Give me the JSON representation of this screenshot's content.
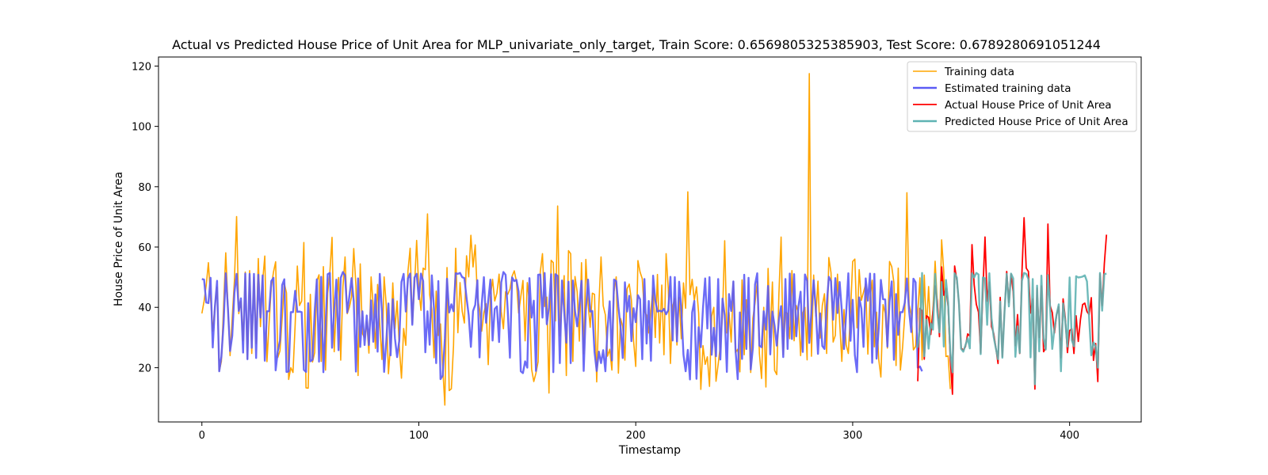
{
  "chart_data": {
    "type": "line",
    "title": "Actual vs Predicted House Price of Unit Area for MLP_univariate_only_target, Train Score: 0.6569805325385903, Test Score: 0.6789280691051244",
    "xlabel": "Timestamp",
    "ylabel": "House Price of Unit Area",
    "xlim": [
      -20,
      433
    ],
    "ylim": [
      2,
      123
    ],
    "xticks": [
      0,
      100,
      200,
      300,
      400
    ],
    "yticks": [
      20,
      40,
      60,
      80,
      100,
      120
    ],
    "grid": false,
    "legend_position": "upper right",
    "train_range": [
      0,
      330
    ],
    "test_range": [
      330,
      413
    ],
    "series": [
      {
        "name": "Training data",
        "color": "#ffa500",
        "x_start": 0,
        "values": [
          38.0,
          42.0,
          47.3,
          54.8,
          43.1,
          32.1,
          40.3,
          46.7,
          18.8,
          22.1,
          40.3,
          58.1,
          40.6,
          24.0,
          36.8,
          48.9,
          70.1,
          37.9,
          42.1,
          28.9,
          51.7,
          22.9,
          52.2,
          24.7,
          50.0,
          28.0,
          56.2,
          33.6,
          48.6,
          57.0,
          22.0,
          35.1,
          46.7,
          51.7,
          55.1,
          23.4,
          25.6,
          36.3,
          47.9,
          44.8,
          16.1,
          20.0,
          18.4,
          34.3,
          53.7,
          40.6,
          42.1,
          61.5,
          13.3,
          13.2,
          44.3,
          21.9,
          25.0,
          48.8,
          50.8,
          22.1,
          53.5,
          19.2,
          44.8,
          51.6,
          63.2,
          25.3,
          41.5,
          49.9,
          22.5,
          46.6,
          56.7,
          37.9,
          40.1,
          43.5,
          59.5,
          47.2,
          17.4,
          54.4,
          31.3,
          29.9,
          35.1,
          24.8,
          50.1,
          40.4,
          26.4,
          47.6,
          34.5,
          22.7,
          50.1,
          40.6,
          18.0,
          28.0,
          48.1,
          32.9,
          42.1,
          26.9,
          16.5,
          33.0,
          27.4,
          52.0,
          59.6,
          34.7,
          46.6,
          62.2,
          45.7,
          39.0,
          53.0,
          52.5,
          71.0,
          44.2,
          39.1,
          23.3,
          45.4,
          30.7,
          34.5,
          20.4,
          7.6,
          53.2,
          12.4,
          13.0,
          27.3,
          59.6,
          31.6,
          48.2,
          38.7,
          34.8,
          57.1,
          50.1,
          63.9,
          53.4,
          60.7,
          43.3,
          39.5,
          32.1,
          38.3,
          41.2,
          21.0,
          43.4,
          49.3,
          42.1,
          44.7,
          51.0,
          38.5,
          32.9,
          45.2,
          44.3,
          46.0,
          50.3,
          52.1,
          48.6,
          38.1,
          43.5,
          48.9,
          28.9,
          48.2,
          41.8,
          19.5,
          15.4,
          18.2,
          22.0,
          51.8,
          57.8,
          40.3,
          43.4,
          11.6,
          55.6,
          54.8,
          35.5,
          73.6,
          30.5,
          42.0,
          50.5,
          17.4,
          58.8,
          57.8,
          22.1,
          50.2,
          45.1,
          28.8,
          54.8,
          24.6,
          55.9,
          41.5,
          33.4,
          44.7,
          44.3,
          15.3,
          40.9,
          56.7,
          40.5,
          37.5,
          23.8,
          26.1,
          19.2,
          45.2,
          50.1,
          18.2,
          36.3,
          33.6,
          22.5,
          46.1,
          47.7,
          42.4,
          28.9,
          20.4,
          55.5,
          51.7,
          49.5,
          38.5,
          37.4,
          31.5,
          39.3,
          46.4,
          30.0,
          50.9,
          28.2,
          47.4,
          24.3,
          57.8,
          46.1,
          21.4,
          40.3,
          43.0,
          27.5,
          43.3,
          29.6,
          48.1,
          39.7,
          78.3,
          44.2,
          49.3,
          42.3,
          46.8,
          38.0,
          12.8,
          27.3,
          21.1,
          23.6,
          13.8,
          37.1,
          40.0,
          15.5,
          21.2,
          27.3,
          37.4,
          62.1,
          31.5,
          38.3,
          28.5,
          48.6,
          25.0,
          26.1,
          18.6,
          49.1,
          24.3,
          42.5,
          37.1,
          18.4,
          36.4,
          41.5,
          48.5,
          24.7,
          16.4,
          40.0,
          13.6,
          52.9,
          30.0,
          48.4,
          19.1,
          17.7,
          44.6,
          63.3,
          24.4,
          38.4,
          38.0,
          29.6,
          52.2,
          28.9,
          40.6,
          38.4,
          24.0,
          38.1,
          40.0,
          22.6,
          117.5,
          23.8,
          50.7,
          37.1,
          48.7,
          29.8,
          40.6,
          44.5,
          24.7,
          56.5,
          51.5,
          28.5,
          30.7,
          51.0,
          35.1,
          22.1,
          39.3,
          27.6,
          24.7,
          38.4,
          55.2,
          56.0,
          33.2,
          52.5,
          42.3,
          45.1,
          47.7,
          24.5,
          43.1,
          49.0,
          26.9,
          38.4,
          22.8,
          16.9,
          40.9,
          38.1,
          26.5,
          55.2,
          53.5,
          48.2,
          20.7,
          53.0,
          19.2,
          26.7,
          37.3,
          78.0,
          41.0,
          37.8,
          25.9,
          27.0,
          38.4,
          49.8,
          22.6,
          50.7,
          32.5,
          46.9,
          31.3,
          39.1,
          55.3,
          41.6,
          32.1,
          62.4,
          51.7,
          23.7,
          23.9,
          12.9
        ]
      },
      {
        "name": "Estimated training data",
        "color": "#5b5bf5",
        "x_start": 0,
        "values": [
          49.4,
          49.2,
          41.6,
          41.4,
          49.8,
          26.7,
          40.1,
          48.8,
          18.8,
          23.7,
          34.6,
          51.3,
          39.8,
          25.5,
          30.6,
          44.8,
          51.1,
          38.8,
          43.0,
          25.0,
          51.2,
          22.8,
          51.1,
          26.6,
          51.1,
          23.2,
          50.8,
          36.6,
          50.6,
          22.3,
          38.7,
          38.7,
          48.7,
          49.8,
          19.1,
          25.5,
          29.0,
          47.4,
          49.3,
          18.6,
          18.7,
          38.4,
          38.4,
          45.5,
          38.5,
          38.6,
          38.4,
          19.3,
          18.6,
          41.4,
          22.1,
          22.6,
          38.8,
          49.3,
          22.0,
          50.1,
          18.5,
          33.8,
          51.0,
          51.4,
          26.6,
          39.4,
          49.2,
          25.8,
          49.8,
          51.7,
          50.6,
          38.3,
          43.7,
          49.7,
          42.1,
          18.7,
          49.6,
          26.9,
          38.7,
          27.5,
          37.3,
          27.5,
          42.3,
          28.6,
          44.3,
          25.3,
          51.1,
          38.5,
          18.6,
          28.7,
          41.3,
          24.1,
          42.7,
          29.7,
          23.5,
          29.0,
          48.4,
          51.1,
          38.6,
          49.6,
          51.2,
          34.2,
          49.9,
          51.1,
          42.7,
          51.2,
          48.7,
          25.1,
          38.7,
          27.6,
          50.6,
          39.3,
          21.5,
          48.7,
          16.2,
          17.4,
          29.6,
          49.5,
          38.3,
          41.0,
          38.7,
          51.3,
          51.1,
          51.4,
          50.0,
          49.7,
          43.2,
          37.4,
          26.9,
          38.8,
          40.8,
          49.0,
          23.4,
          41.0,
          50.0,
          34.9,
          42.1,
          49.2,
          29.0,
          39.5,
          40.3,
          28.5,
          48.3,
          51.7,
          50.8,
          38.9,
          23.3,
          49.9,
          48.7,
          49.1,
          45.2,
          18.8,
          18.2,
          22.1,
          20.0,
          49.7,
          36.6,
          42.2,
          18.9,
          50.8,
          50.9,
          36.6,
          51.4,
          34.4,
          39.9,
          51.0,
          18.5,
          51.0,
          50.4,
          21.5,
          48.9,
          38.7,
          28.3,
          48.5,
          21.5,
          48.9,
          38.8,
          33.7,
          40.5,
          48.8,
          18.9,
          39.1,
          49.2,
          38.6,
          38.8,
          25.2,
          18.9,
          25.3,
          21.5,
          25.8,
          18.8,
          33.0,
          42.0,
          22.4,
          49.2,
          48.7,
          40.2,
          33.6,
          23.2,
          48.3,
          38.6,
          43.8,
          28.8,
          39.7,
          35.1,
          44.0,
          42.7,
          22.8,
          49.4,
          28.0,
          42.1,
          22.3,
          50.5,
          42.3,
          38.6,
          38.9,
          38.6,
          39.5,
          37.7,
          39.1,
          50.1,
          29.0,
          50.0,
          28.7,
          48.5,
          39.4,
          24.3,
          18.8,
          25.9,
          16.1,
          38.3,
          42.1,
          16.3,
          33.4,
          26.8,
          39.8,
          49.6,
          33.0,
          50.0,
          24.3,
          33.2,
          23.8,
          49.4,
          22.7,
          42.9,
          37.4,
          18.6,
          44.4,
          38.8,
          48.6,
          25.8,
          16.2,
          38.3,
          22.9,
          50.8,
          26.2,
          49.8,
          19.4,
          26.6,
          47.6,
          51.3,
          27.3,
          26.8,
          38.7,
          32.6,
          47.1,
          24.4,
          38.6,
          33.9,
          27.3,
          35.9,
          40.4,
          23.5,
          49.4,
          26.2,
          51.2,
          29.5,
          51.0,
          30.4,
          40.4,
          45.2,
          25.2,
          50.9,
          48.8,
          28.2,
          38.7,
          49.0,
          39.5,
          24.6,
          38.0,
          27.2,
          26.2,
          40.4,
          50.1,
          48.7,
          35.9,
          49.7,
          38.1,
          48.4,
          38.8,
          26.2,
          38.0,
          51.3,
          28.9,
          42.5,
          24.2,
          18.5,
          43.3,
          39.6,
          26.9,
          49.6,
          42.2,
          51.2,
          21.6,
          51.1,
          23.0,
          33.0,
          49.1,
          42.7,
          42.6,
          27.0,
          42.0,
          48.6,
          22.6,
          44.4,
          30.9,
          38.4,
          38.4,
          41.5,
          49.6,
          38.9,
          31.8,
          49.5,
          48.3,
          20.0,
          20.4,
          18.8
        ]
      },
      {
        "name": "Actual House Price of Unit Area",
        "color": "#ff0000",
        "x_start": 330,
        "values": [
          15.5,
          39.7,
          38.8,
          22.8,
          37.2,
          36.7,
          31.0,
          38.5,
          47.1,
          42.0,
          30.3,
          53.4,
          44.0,
          46.3,
          40.4,
          22.8,
          11.2,
          53.7,
          49.0,
          41.5,
          26.5,
          25.8,
          27.0,
          31.2,
          30.5,
          60.8,
          47.5,
          41.0,
          38.4,
          24.9,
          45.1,
          63.3,
          42.0,
          48.4,
          33.6,
          31.4,
          26.6,
          21.4,
          43.3,
          23.7,
          38.9,
          51.9,
          41.6,
          51.0,
          45.1,
          27.3,
          37.6,
          24.7,
          51.1,
          69.7,
          53.0,
          51.9,
          38.1,
          42.8,
          12.9,
          46.4,
          30.0,
          47.1,
          25.3,
          26.5,
          67.6,
          40.6,
          38.3,
          31.5,
          37.5,
          40.2,
          23.3,
          42.8,
          36.5,
          25.0,
          32.3,
          32.9,
          24.7,
          37.2,
          28.7,
          36.0,
          40.9,
          41.4,
          38.6,
          37.6,
          43.2,
          22.4,
          28.0,
          15.4,
          51.0,
          40.6,
          54.4,
          64.1
        ]
      },
      {
        "name": "Predicted House Price of Unit Area",
        "color": "#5fb3b3",
        "x_start": 330,
        "values": [
          26.6,
          33.4,
          51.4,
          23.8,
          35.9,
          26.3,
          34.7,
          32.6,
          51.1,
          38.6,
          31.7,
          48.4,
          27.0,
          49.1,
          41.6,
          25.1,
          18.5,
          51.3,
          49.9,
          41.1,
          26.2,
          25.3,
          27.5,
          29.8,
          26.4,
          51.3,
          49.9,
          51.4,
          50.9,
          24.5,
          49.9,
          49.6,
          34.2,
          51.3,
          36.4,
          30.2,
          26.4,
          22.8,
          41.9,
          23.3,
          38.6,
          51.1,
          40.3,
          51.2,
          49.6,
          23.6,
          33.7,
          24.9,
          48.8,
          51.4,
          51.1,
          49.4,
          23.4,
          49.4,
          14.5,
          47.2,
          25.4,
          50.5,
          29.8,
          26.0,
          50.7,
          40.3,
          26.2,
          33.0,
          37.6,
          41.0,
          18.8,
          41.3,
          35.2,
          27.0,
          49.9,
          29.1,
          27.1,
          50.3,
          49.9,
          50.0,
          50.2,
          50.6,
          48.6,
          36.5,
          24.1,
          28.4,
          27.0,
          20.0,
          51.4,
          38.9,
          51.0,
          51.2
        ]
      }
    ]
  }
}
